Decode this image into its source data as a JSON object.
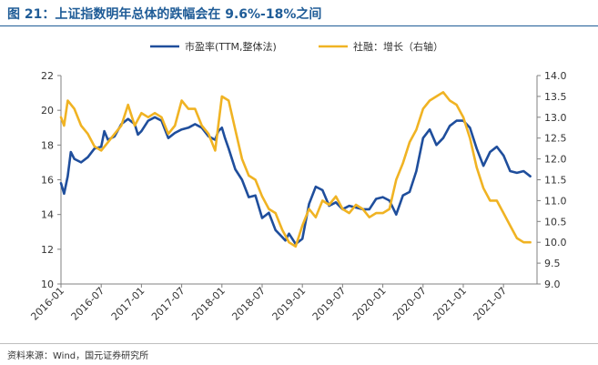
{
  "title": "图 21：上证指数明年总体的跌幅会在 9.6%-18%之间",
  "source": "资料来源：Wind，国元证券研究所",
  "chart_data": {
    "type": "line",
    "title": "",
    "xlabel": "",
    "ylabel": "",
    "ylabel_right": "",
    "grid": false,
    "legend_position": "top-center",
    "x_tick_labels": [
      "2016-01",
      "2016-07",
      "2017-01",
      "2017-07",
      "2018-01",
      "2018-07",
      "2019-01",
      "2019-07",
      "2020-01",
      "2020-07",
      "2021-01",
      "2021-07"
    ],
    "ylim_left": [
      10,
      22
    ],
    "yticks_left": [
      10,
      12,
      14,
      16,
      18,
      20,
      22
    ],
    "ylim_right": [
      9.0,
      14.0
    ],
    "yticks_right": [
      "9.0",
      "9.5",
      "10.0",
      "10.5",
      "11.0",
      "11.5",
      "12.0",
      "12.5",
      "13.0",
      "13.5",
      "14.0"
    ],
    "series": [
      {
        "name": "市盈率(TTM,整体法)",
        "axis": "left",
        "color": "#1f4e9c",
        "points": [
          [
            "2016-01",
            15.8
          ],
          [
            "2016-01-15",
            15.2
          ],
          [
            "2016-02",
            16.2
          ],
          [
            "2016-02-15",
            17.6
          ],
          [
            "2016-03",
            17.2
          ],
          [
            "2016-04",
            17.0
          ],
          [
            "2016-05",
            17.3
          ],
          [
            "2016-06",
            17.8
          ],
          [
            "2016-07",
            17.9
          ],
          [
            "2016-07-15",
            18.8
          ],
          [
            "2016-08",
            18.3
          ],
          [
            "2016-09",
            18.5
          ],
          [
            "2016-10",
            19.2
          ],
          [
            "2016-11",
            19.5
          ],
          [
            "2016-12",
            19.2
          ],
          [
            "2016-12-15",
            18.6
          ],
          [
            "2017-01",
            18.8
          ],
          [
            "2017-02",
            19.4
          ],
          [
            "2017-03",
            19.6
          ],
          [
            "2017-04",
            19.4
          ],
          [
            "2017-05",
            18.4
          ],
          [
            "2017-06",
            18.7
          ],
          [
            "2017-07",
            18.9
          ],
          [
            "2017-08",
            19.0
          ],
          [
            "2017-09",
            19.2
          ],
          [
            "2017-10",
            19.0
          ],
          [
            "2017-11",
            18.5
          ],
          [
            "2017-12",
            18.3
          ],
          [
            "2017-12-15",
            18.8
          ],
          [
            "2018-01",
            19.0
          ],
          [
            "2018-01-15",
            18.4
          ],
          [
            "2018-02",
            17.8
          ],
          [
            "2018-03",
            16.6
          ],
          [
            "2018-04",
            16.0
          ],
          [
            "2018-05",
            15.0
          ],
          [
            "2018-06",
            15.1
          ],
          [
            "2018-07",
            13.8
          ],
          [
            "2018-08",
            14.1
          ],
          [
            "2018-09",
            13.1
          ],
          [
            "2018-10",
            12.7
          ],
          [
            "2018-10-15",
            12.5
          ],
          [
            "2018-11",
            12.9
          ],
          [
            "2018-12",
            12.3
          ],
          [
            "2019-01",
            12.6
          ],
          [
            "2019-02",
            14.6
          ],
          [
            "2019-03",
            15.6
          ],
          [
            "2019-04",
            15.4
          ],
          [
            "2019-05",
            14.5
          ],
          [
            "2019-06",
            14.7
          ],
          [
            "2019-07",
            14.3
          ],
          [
            "2019-08",
            14.5
          ],
          [
            "2019-09",
            14.4
          ],
          [
            "2019-10",
            14.3
          ],
          [
            "2019-11",
            14.3
          ],
          [
            "2019-12",
            14.9
          ],
          [
            "2020-01",
            15.0
          ],
          [
            "2020-02",
            14.8
          ],
          [
            "2020-03",
            14.0
          ],
          [
            "2020-04",
            15.1
          ],
          [
            "2020-05",
            15.3
          ],
          [
            "2020-06",
            16.5
          ],
          [
            "2020-07",
            18.4
          ],
          [
            "2020-08",
            18.9
          ],
          [
            "2020-09",
            18.0
          ],
          [
            "2020-10",
            18.4
          ],
          [
            "2020-11",
            19.1
          ],
          [
            "2020-12",
            19.4
          ],
          [
            "2021-01",
            19.4
          ],
          [
            "2021-02",
            19.0
          ],
          [
            "2021-03",
            17.8
          ],
          [
            "2021-04",
            16.8
          ],
          [
            "2021-05",
            17.6
          ],
          [
            "2021-06",
            17.9
          ],
          [
            "2021-07",
            17.4
          ],
          [
            "2021-08",
            16.5
          ],
          [
            "2021-09",
            16.4
          ],
          [
            "2021-10",
            16.5
          ],
          [
            "2021-11",
            16.2
          ]
        ]
      },
      {
        "name": "社融：增长（右轴）",
        "axis": "right",
        "color": "#f0b323",
        "points": [
          [
            "2016-01",
            13.0
          ],
          [
            "2016-01-15",
            12.8
          ],
          [
            "2016-02",
            13.4
          ],
          [
            "2016-03",
            13.2
          ],
          [
            "2016-04",
            12.8
          ],
          [
            "2016-05",
            12.6
          ],
          [
            "2016-06",
            12.3
          ],
          [
            "2016-07",
            12.2
          ],
          [
            "2016-08",
            12.4
          ],
          [
            "2016-09",
            12.6
          ],
          [
            "2016-10",
            12.8
          ],
          [
            "2016-11",
            13.3
          ],
          [
            "2016-12",
            12.8
          ],
          [
            "2017-01",
            13.1
          ],
          [
            "2017-02",
            13.0
          ],
          [
            "2017-03",
            13.1
          ],
          [
            "2017-04",
            13.0
          ],
          [
            "2017-05",
            12.6
          ],
          [
            "2017-06",
            12.8
          ],
          [
            "2017-07",
            13.4
          ],
          [
            "2017-08",
            13.2
          ],
          [
            "2017-09",
            13.2
          ],
          [
            "2017-10",
            12.8
          ],
          [
            "2017-11",
            12.6
          ],
          [
            "2017-12",
            12.2
          ],
          [
            "2018-01",
            13.5
          ],
          [
            "2018-02",
            13.4
          ],
          [
            "2018-03",
            12.7
          ],
          [
            "2018-04",
            12.0
          ],
          [
            "2018-05",
            11.6
          ],
          [
            "2018-06",
            11.5
          ],
          [
            "2018-07",
            11.1
          ],
          [
            "2018-08",
            10.8
          ],
          [
            "2018-09",
            10.7
          ],
          [
            "2018-10",
            10.3
          ],
          [
            "2018-11",
            10.0
          ],
          [
            "2018-12",
            9.9
          ],
          [
            "2019-01",
            10.4
          ],
          [
            "2019-02",
            10.8
          ],
          [
            "2019-03",
            10.6
          ],
          [
            "2019-04",
            11.0
          ],
          [
            "2019-05",
            10.9
          ],
          [
            "2019-06",
            11.1
          ],
          [
            "2019-07",
            10.8
          ],
          [
            "2019-08",
            10.7
          ],
          [
            "2019-09",
            10.9
          ],
          [
            "2019-10",
            10.8
          ],
          [
            "2019-11",
            10.6
          ],
          [
            "2019-12",
            10.7
          ],
          [
            "2020-01",
            10.7
          ],
          [
            "2020-02",
            10.8
          ],
          [
            "2020-03",
            11.5
          ],
          [
            "2020-04",
            11.9
          ],
          [
            "2020-05",
            12.4
          ],
          [
            "2020-06",
            12.7
          ],
          [
            "2020-07",
            13.2
          ],
          [
            "2020-08",
            13.4
          ],
          [
            "2020-09",
            13.5
          ],
          [
            "2020-10",
            13.6
          ],
          [
            "2020-11",
            13.4
          ],
          [
            "2020-12",
            13.3
          ],
          [
            "2021-01",
            13.0
          ],
          [
            "2021-02",
            12.5
          ],
          [
            "2021-03",
            11.8
          ],
          [
            "2021-04",
            11.3
          ],
          [
            "2021-05",
            11.0
          ],
          [
            "2021-06",
            11.0
          ],
          [
            "2021-07",
            10.7
          ],
          [
            "2021-08",
            10.4
          ],
          [
            "2021-09",
            10.1
          ],
          [
            "2021-10",
            10.0
          ],
          [
            "2021-11",
            10.0
          ]
        ]
      }
    ]
  }
}
